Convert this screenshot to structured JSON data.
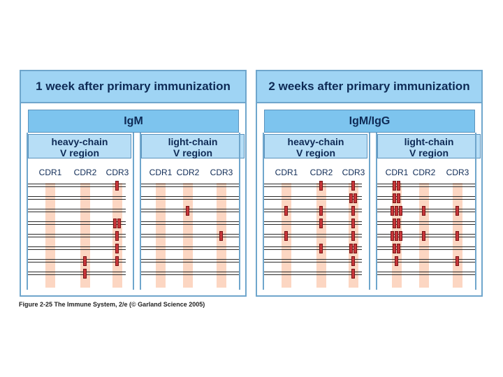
{
  "panels": [
    {
      "title": "1 week after primary immunization",
      "isotype": "IgM",
      "regions": [
        "heavy-chain\nV region",
        "light-chain\nV region"
      ]
    },
    {
      "title": "2 weeks after primary immunization",
      "isotype": "IgM/IgG",
      "regions": [
        "heavy-chain\nV region",
        "light-chain\nV region"
      ]
    }
  ],
  "cdr_labels": [
    "CDR1",
    "CDR2",
    "CDR3",
    "CDR1",
    "CDR2",
    "CDR3"
  ],
  "mutations": {
    "week1": {
      "heavy": [
        {
          "row": 1,
          "cdr": 3,
          "count": 1
        },
        {
          "row": 4,
          "cdr": 3,
          "count": 2
        },
        {
          "row": 5,
          "cdr": 3,
          "count": 1
        },
        {
          "row": 6,
          "cdr": 3,
          "count": 1
        },
        {
          "row": 7,
          "cdr": 3,
          "count": 1
        },
        {
          "row": 7,
          "cdr": 2,
          "count": 1
        },
        {
          "row": 8,
          "cdr": 2,
          "count": 1
        }
      ],
      "light": [
        {
          "row": 3,
          "cdr": 2,
          "count": 1
        },
        {
          "row": 5,
          "cdr": 3,
          "count": 1
        }
      ]
    },
    "week2": {
      "heavy": [
        {
          "row": 1,
          "cdr": 2,
          "count": 1
        },
        {
          "row": 1,
          "cdr": 3,
          "count": 1
        },
        {
          "row": 2,
          "cdr": 3,
          "count": 2
        },
        {
          "row": 3,
          "cdr": 1,
          "count": 1
        },
        {
          "row": 3,
          "cdr": 2,
          "count": 1
        },
        {
          "row": 3,
          "cdr": 3,
          "count": 1
        },
        {
          "row": 4,
          "cdr": 2,
          "count": 1
        },
        {
          "row": 4,
          "cdr": 3,
          "count": 1
        },
        {
          "row": 5,
          "cdr": 1,
          "count": 1
        },
        {
          "row": 5,
          "cdr": 3,
          "count": 1
        },
        {
          "row": 6,
          "cdr": 2,
          "count": 1
        },
        {
          "row": 6,
          "cdr": 3,
          "count": 2
        },
        {
          "row": 7,
          "cdr": 3,
          "count": 1
        },
        {
          "row": 8,
          "cdr": 3,
          "count": 1
        }
      ],
      "light": [
        {
          "row": 1,
          "cdr": 1,
          "count": 2
        },
        {
          "row": 2,
          "cdr": 1,
          "count": 2
        },
        {
          "row": 3,
          "cdr": 1,
          "count": 3
        },
        {
          "row": 3,
          "cdr": 2,
          "count": 1
        },
        {
          "row": 3,
          "cdr": 3,
          "count": 1
        },
        {
          "row": 4,
          "cdr": 1,
          "count": 2
        },
        {
          "row": 5,
          "cdr": 1,
          "count": 3
        },
        {
          "row": 5,
          "cdr": 2,
          "count": 1
        },
        {
          "row": 5,
          "cdr": 3,
          "count": 1
        },
        {
          "row": 6,
          "cdr": 1,
          "count": 2
        },
        {
          "row": 7,
          "cdr": 1,
          "count": 1
        },
        {
          "row": 7,
          "cdr": 3,
          "count": 1
        }
      ]
    }
  },
  "caption": "Figure 2-25  The Immune System, 2/e (© Garland Science 2005)",
  "colors": {
    "header": "#9fd4f4",
    "cdr_band": "#fcd6c2",
    "mutation": "#c8363a"
  }
}
